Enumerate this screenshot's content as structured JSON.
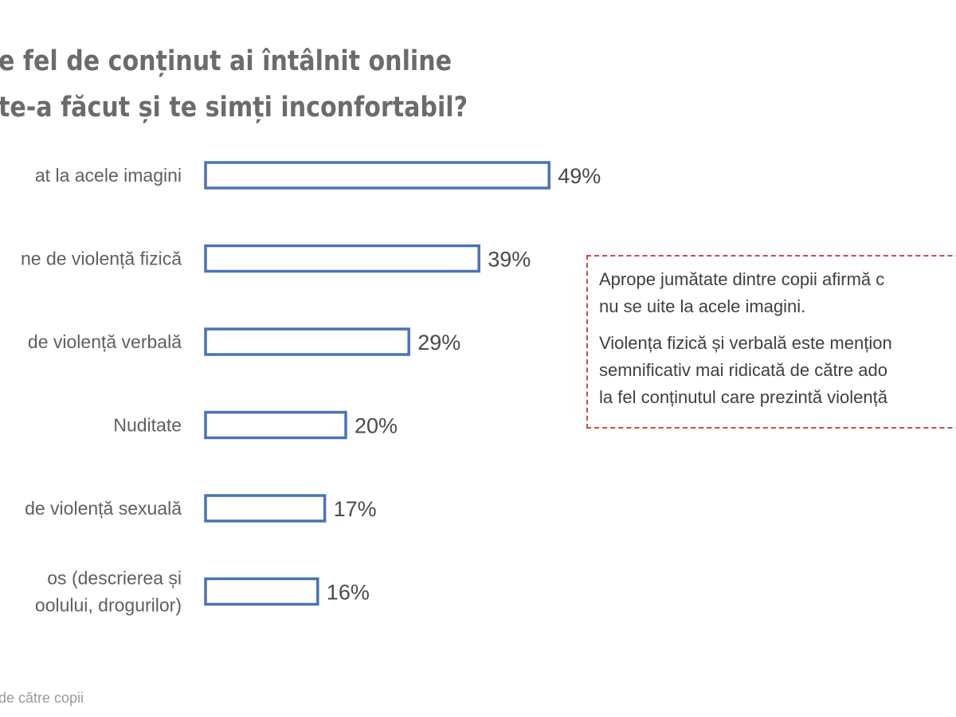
{
  "title": {
    "line1": "e fel de conținut ai întâlnit online",
    "line2": "te-a făcut și te simți inconfortabil?"
  },
  "chart_data": {
    "type": "bar",
    "orientation": "horizontal",
    "categories": [
      [
        "at la acele imagini"
      ],
      [
        "ne de violență fizică"
      ],
      [
        "de violență verbală"
      ],
      [
        "Nuditate"
      ],
      [
        "de violență sexuală"
      ],
      [
        "os (descrierea și",
        "oolului, drogurilor)"
      ]
    ],
    "values": [
      49,
      39,
      29,
      20,
      17,
      16
    ],
    "value_labels": [
      "49%",
      "39%",
      "29%",
      "20%",
      "17%",
      "16%"
    ],
    "unit": "%",
    "bar_style": "outline",
    "bar_color": "#4a72b8",
    "grid": false,
    "legend": "none"
  },
  "note": {
    "paragraph1": [
      "Aprope jumătate dintre copii afirmă c",
      "nu se uite la acele imagini."
    ],
    "paragraph2": [
      "Violența fizică și verbală este mențion",
      "semnificativ mai ridicată de către ado",
      "la fel conținutul care prezintă violență"
    ],
    "border_color": "#c0504d"
  },
  "source": "de către copii"
}
